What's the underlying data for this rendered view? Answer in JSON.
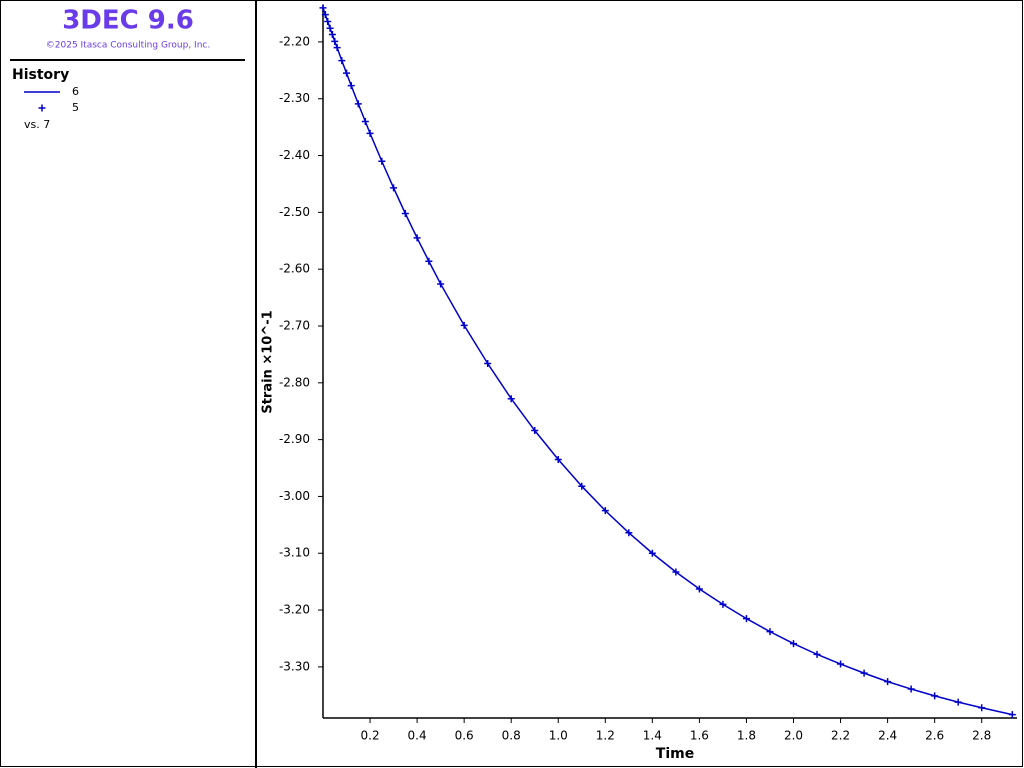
{
  "header": {
    "title": "3DEC 9.6",
    "copyright": "©2025 Itasca Consulting Group, Inc."
  },
  "legend_title": "History",
  "x_series_note": "vs. 7",
  "chart_data": {
    "type": "line",
    "xlabel": "Time",
    "ylabel": "Strain ×10^-1",
    "x": [
      0,
      0.01,
      0.02,
      0.03,
      0.04,
      0.05,
      0.06,
      0.08,
      0.1,
      0.12,
      0.15,
      0.18,
      0.2,
      0.25,
      0.3,
      0.35,
      0.4,
      0.45,
      0.5,
      0.6,
      0.7,
      0.8,
      0.9,
      1.0,
      1.1,
      1.2,
      1.3,
      1.4,
      1.5,
      1.6,
      1.7,
      1.8,
      1.9,
      2.0,
      2.1,
      2.2,
      2.3,
      2.4,
      2.5,
      2.6,
      2.7,
      2.8,
      2.93
    ],
    "series": [
      {
        "name": "6",
        "color": "#0000cc",
        "style": "line",
        "values": [
          -2.14,
          -2.152,
          -2.164,
          -2.176,
          -2.187,
          -2.199,
          -2.21,
          -2.233,
          -2.255,
          -2.277,
          -2.309,
          -2.34,
          -2.361,
          -2.41,
          -2.457,
          -2.502,
          -2.545,
          -2.586,
          -2.626,
          -2.699,
          -2.766,
          -2.828,
          -2.884,
          -2.935,
          -2.982,
          -3.025,
          -3.064,
          -3.1,
          -3.133,
          -3.163,
          -3.19,
          -3.215,
          -3.238,
          -3.259,
          -3.278,
          -3.295,
          -3.311,
          -3.326,
          -3.339,
          -3.351,
          -3.362,
          -3.372,
          -3.384
        ]
      },
      {
        "name": "5",
        "color": "#0000cc",
        "style": "marker",
        "values": [
          -2.14,
          -2.152,
          -2.164,
          -2.176,
          -2.187,
          -2.199,
          -2.21,
          -2.233,
          -2.255,
          -2.277,
          -2.309,
          -2.34,
          -2.361,
          -2.41,
          -2.457,
          -2.502,
          -2.545,
          -2.586,
          -2.626,
          -2.699,
          -2.766,
          -2.828,
          -2.884,
          -2.935,
          -2.982,
          -3.025,
          -3.064,
          -3.1,
          -3.133,
          -3.163,
          -3.19,
          -3.215,
          -3.238,
          -3.259,
          -3.278,
          -3.295,
          -3.311,
          -3.326,
          -3.339,
          -3.351,
          -3.362,
          -3.372,
          -3.384
        ]
      }
    ],
    "xlim": [
      0,
      2.95
    ],
    "xticks": [
      0.2,
      0.4,
      0.6,
      0.8,
      {
        "value": 1.0,
        "label": "1.0"
      },
      1.2,
      1.4,
      1.6,
      1.8,
      {
        "value": 2.0,
        "label": "2.0"
      },
      2.2,
      2.4,
      2.6,
      2.8
    ],
    "ylim": [
      -3.39,
      -2.135
    ],
    "yticks": [
      {
        "value": -2.2,
        "label": "-2.20"
      },
      {
        "value": -2.3,
        "label": "-2.30"
      },
      {
        "value": -2.4,
        "label": "-2.40"
      },
      {
        "value": -2.5,
        "label": "-2.50"
      },
      {
        "value": -2.6,
        "label": "-2.60"
      },
      {
        "value": -2.7,
        "label": "-2.70"
      },
      {
        "value": -2.8,
        "label": "-2.80"
      },
      {
        "value": -2.9,
        "label": "-2.90"
      },
      {
        "value": -3.0,
        "label": "-3.00"
      },
      {
        "value": -3.1,
        "label": "-3.10"
      },
      {
        "value": -3.2,
        "label": "-3.20"
      },
      {
        "value": -3.3,
        "label": "-3.30"
      }
    ],
    "grid": false
  }
}
